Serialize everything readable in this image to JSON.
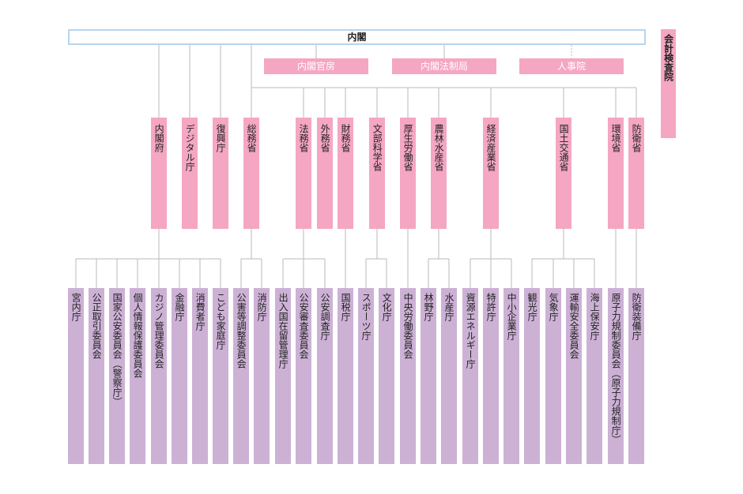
{
  "cabinet": {
    "label": "内閣"
  },
  "audit_board": {
    "label": "会計検査院"
  },
  "top_offices": [
    {
      "label": "内閣官房"
    },
    {
      "label": "内閣法制局"
    },
    {
      "label": "人事院"
    }
  ],
  "ministries": [
    {
      "label": "内閣府"
    },
    {
      "label": "デジタル庁"
    },
    {
      "label": "復興庁"
    },
    {
      "label": "総務省"
    },
    {
      "label": "法務省"
    },
    {
      "label": "外務省"
    },
    {
      "label": "財務省"
    },
    {
      "label": "文部科学省"
    },
    {
      "label": "厚生労働省"
    },
    {
      "label": "農林水産省"
    },
    {
      "label": "経済産業省"
    },
    {
      "label": "国土交通省"
    },
    {
      "label": "環境省"
    },
    {
      "label": "防衛省"
    }
  ],
  "agencies": [
    {
      "label": "宮内庁"
    },
    {
      "label": "公正取引委員会"
    },
    {
      "label": "国家公安委員会（警察庁）"
    },
    {
      "label": "個人情報保護委員会"
    },
    {
      "label": "カジノ管理委員会"
    },
    {
      "label": "金融庁"
    },
    {
      "label": "消費者庁"
    },
    {
      "label": "こども家庭庁"
    },
    {
      "label": "公害等調整委員会"
    },
    {
      "label": "消防庁"
    },
    {
      "label": "出入国在留管理庁"
    },
    {
      "label": "公安審査委員会"
    },
    {
      "label": "公安調査庁"
    },
    {
      "label": "国税庁"
    },
    {
      "label": "スポーツ庁"
    },
    {
      "label": "文化庁"
    },
    {
      "label": "中央労働委員会"
    },
    {
      "label": "林野庁"
    },
    {
      "label": "水産庁"
    },
    {
      "label": "資源エネルギー庁"
    },
    {
      "label": "特許庁"
    },
    {
      "label": "中小企業庁"
    },
    {
      "label": "観光庁"
    },
    {
      "label": "気象庁"
    },
    {
      "label": "運輸安全委員会"
    },
    {
      "label": "海上保安庁"
    },
    {
      "label": "原子力規制委員会（原子力規制庁）"
    },
    {
      "label": "防衛装備庁"
    }
  ]
}
